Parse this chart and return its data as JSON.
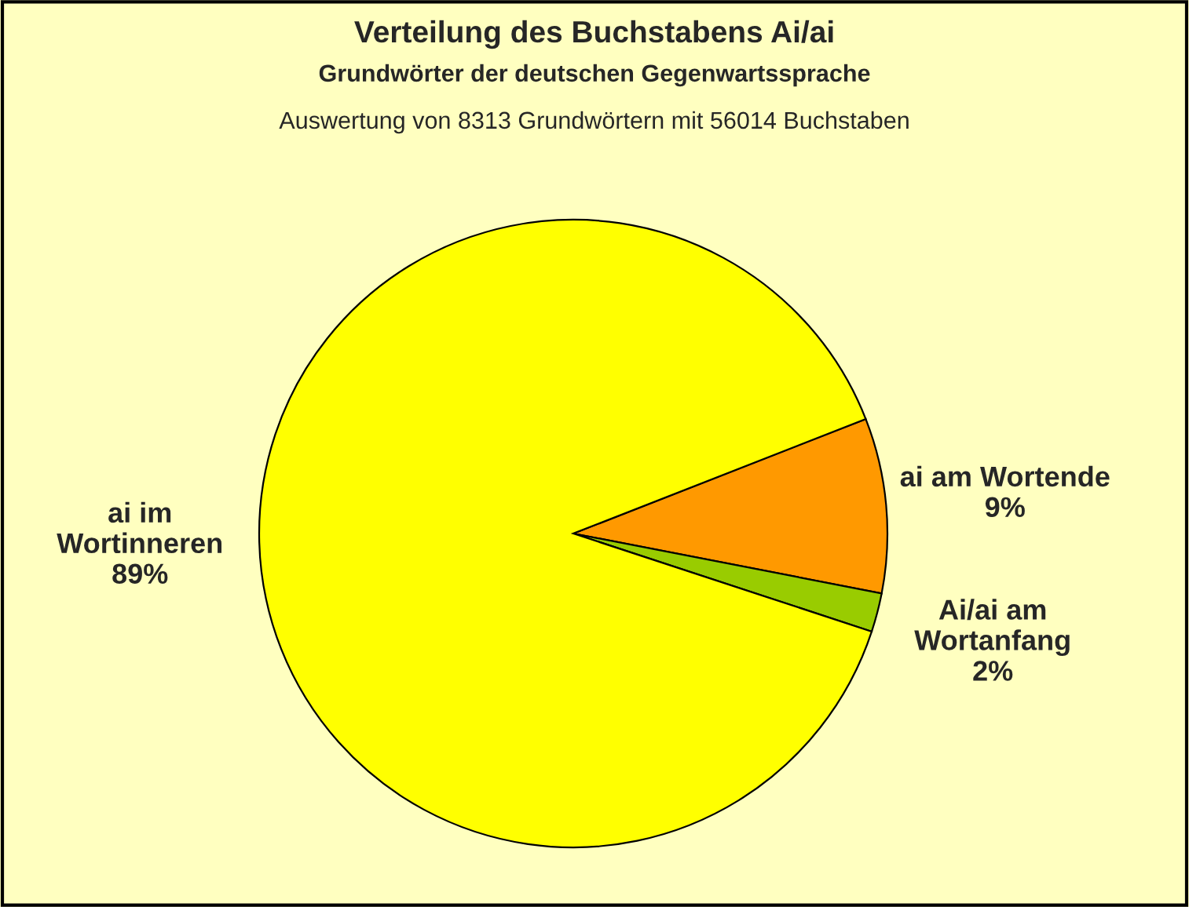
{
  "chart_data": {
    "type": "pie",
    "title": "Verteilung des Buchstabens Ai/ai",
    "subtitle": "Grundwörter der deutschen Gegenwartssprache",
    "annotations": [
      "Auswertung von 8313 Grundwörtern mit 56014 Buchstaben"
    ],
    "categories": [
      "ai am Wortende",
      "Ai/ai am\nWortanfang",
      "ai im\nWortinneren"
    ],
    "values": [
      9,
      2,
      89
    ],
    "value_labels": [
      "9%",
      "2%",
      "89%"
    ],
    "colors": [
      "#ff9900",
      "#99cc00",
      "#ffff00"
    ],
    "legend": false
  }
}
